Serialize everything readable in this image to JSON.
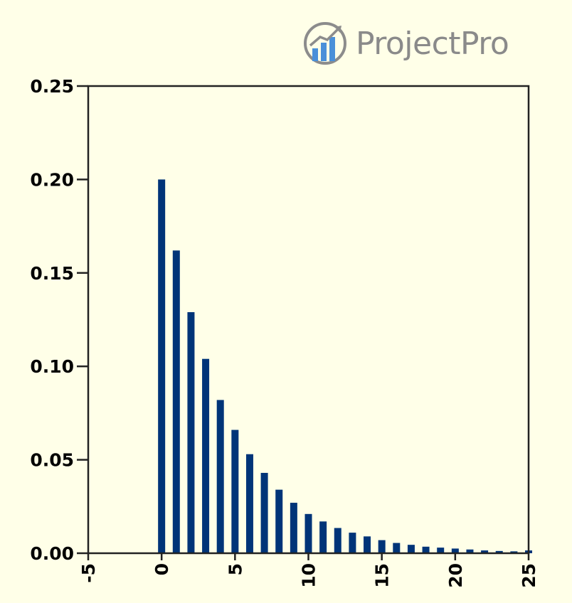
{
  "logo": {
    "text": "ProjectPro",
    "icon": "bar-chart-growth-icon"
  },
  "chart_data": {
    "type": "bar",
    "title": "",
    "xlabel": "",
    "ylabel": "",
    "xlim": [
      -5,
      25
    ],
    "ylim": [
      0,
      0.25
    ],
    "x_ticks": [
      "-5",
      "0",
      "5",
      "10",
      "15",
      "20",
      "25"
    ],
    "y_ticks": [
      "0.00",
      "0.05",
      "0.10",
      "0.15",
      "0.20",
      "0.25"
    ],
    "bar_color": "#003478",
    "x": [
      0,
      1,
      2,
      3,
      4,
      5,
      6,
      7,
      8,
      9,
      10,
      11,
      12,
      13,
      14,
      15,
      16,
      17,
      18,
      19,
      20,
      21,
      22,
      23,
      24,
      25
    ],
    "values": [
      0.2,
      0.162,
      0.129,
      0.104,
      0.082,
      0.066,
      0.053,
      0.043,
      0.034,
      0.027,
      0.021,
      0.017,
      0.0135,
      0.011,
      0.009,
      0.007,
      0.0055,
      0.0045,
      0.0035,
      0.003,
      0.0025,
      0.002,
      0.0015,
      0.0012,
      0.001,
      0.0015
    ],
    "grid": false
  }
}
